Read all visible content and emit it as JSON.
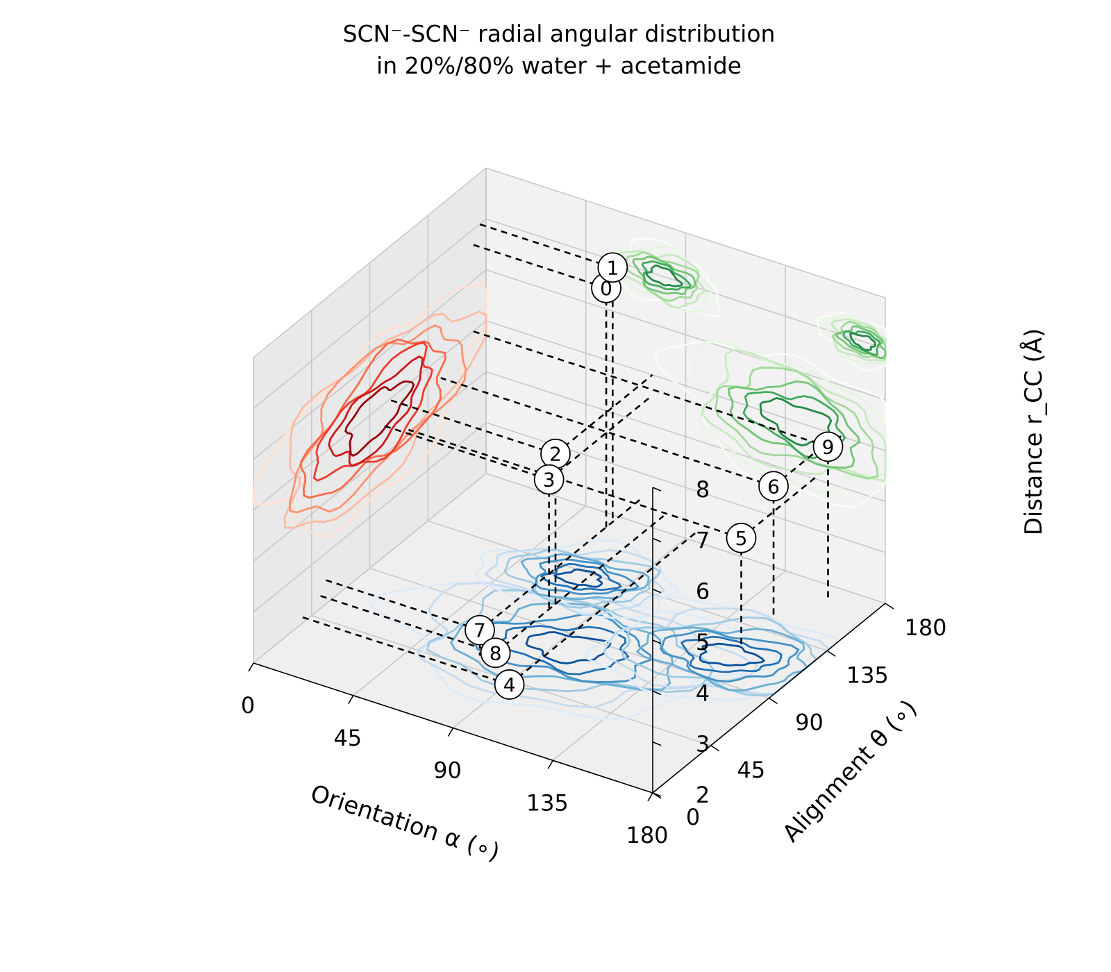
{
  "chart_data": {
    "type": "contour3d",
    "title": "SCN⁻-SCN⁻ radial angular distribution\nin 20%/80% water + acetamide",
    "title_lines": [
      "SCN⁻-SCN⁻ radial angular distribution",
      "in 20%/80% water + acetamide"
    ],
    "xlabel": "Orientation α (∘)",
    "ylabel": "Alignment θ (∘)",
    "zlabel": "Distance r_CC (Å)",
    "xlim": [
      0,
      180
    ],
    "ylim": [
      0,
      180
    ],
    "zlim": [
      2,
      8
    ],
    "x_ticks": [
      "0",
      "45",
      "90",
      "135",
      "180"
    ],
    "y_ticks": [
      "0",
      "45",
      "90",
      "135",
      "180"
    ],
    "z_ticks": [
      "2",
      "3",
      "4",
      "5",
      "6",
      "7",
      "8"
    ],
    "projections": [
      {
        "plane": "alpha-theta (bottom)",
        "colormap": "Blues",
        "colors": [
          "#deebf7",
          "#c6dbef",
          "#9ecae1",
          "#6baed6",
          "#4292c6",
          "#2171b5",
          "#08519c"
        ]
      },
      {
        "plane": "theta-r (left)",
        "colormap": "Reds",
        "colors": [
          "#fee0d2",
          "#fcbba1",
          "#fc9272",
          "#fb6a4a",
          "#ef3b2c",
          "#cb181d",
          "#99000d"
        ]
      },
      {
        "plane": "alpha-r (back)",
        "colormap": "Greens",
        "colors": [
          "#f7fcf5",
          "#e5f5e0",
          "#c7e9c0",
          "#a1d99b",
          "#74c476",
          "#41ab5d",
          "#238b45"
        ]
      }
    ],
    "points": [
      {
        "label": "0",
        "alpha": 60,
        "theta": 170,
        "r": 6.7
      },
      {
        "label": "1",
        "alpha": 60,
        "theta": 175,
        "r": 7.0
      },
      {
        "label": "2",
        "alpha": 75,
        "theta": 105,
        "r": 5.0
      },
      {
        "label": "3",
        "alpha": 75,
        "theta": 100,
        "r": 4.6
      },
      {
        "label": "4",
        "alpha": 95,
        "theta": 35,
        "r": 2.2
      },
      {
        "label": "5",
        "alpha": 150,
        "theta": 120,
        "r": 4.1
      },
      {
        "label": "6",
        "alpha": 150,
        "theta": 145,
        "r": 4.6
      },
      {
        "label": "7",
        "alpha": 70,
        "theta": 55,
        "r": 2.5
      },
      {
        "label": "8",
        "alpha": 80,
        "theta": 50,
        "r": 2.3
      },
      {
        "label": "9",
        "alpha": 160,
        "theta": 170,
        "r": 5.0
      }
    ],
    "grid": true
  }
}
